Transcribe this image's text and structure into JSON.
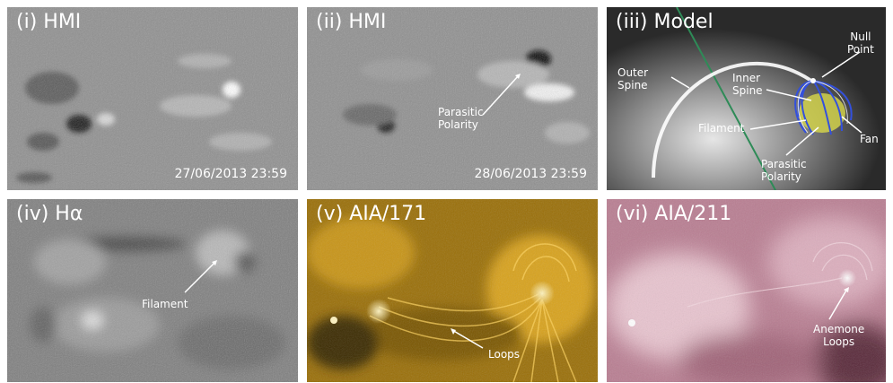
{
  "panels": [
    {
      "title": "(i) HMI",
      "timestamp": "27/06/2013 23:59"
    },
    {
      "title": "(ii) HMI",
      "timestamp": "28/06/2013 23:59",
      "annotation": [
        "Parasitic",
        "Polarity"
      ]
    },
    {
      "title": "(iii) Model",
      "labels": {
        "null_point": [
          "Null",
          "Point"
        ],
        "outer_spine": [
          "Outer",
          "Spine"
        ],
        "inner_spine": [
          "Inner",
          "Spine"
        ],
        "filament": "Filament",
        "fan": "Fan",
        "parasitic_polarity": [
          "Parasitic",
          "Polarity"
        ]
      }
    },
    {
      "title": "(iv) Hα",
      "annotation": "Filament"
    },
    {
      "title": "(v) AIA/171",
      "annotation": "Loops"
    },
    {
      "title": "(vi) AIA/211",
      "annotation": [
        "Anemone",
        "Loops"
      ]
    }
  ],
  "colors": {
    "hmi_gray": "#8e8e8e",
    "halpha_gray": "#7d7d7d",
    "aia171": "#b8860b",
    "aia211": "#c48a9e",
    "model_green_line": "#2e8b57"
  }
}
